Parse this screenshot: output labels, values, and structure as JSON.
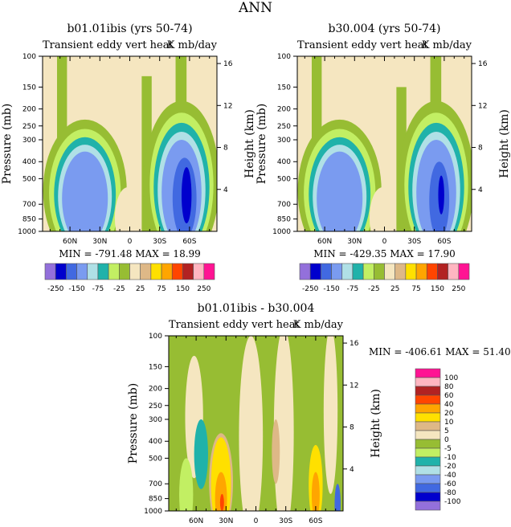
{
  "chart_data": {
    "type": "heatmap",
    "title": "ANN",
    "palette": [
      "#9370DB",
      "#0000CD",
      "#4169E1",
      "#7A9BF0",
      "#B0E0E6",
      "#20B2AA",
      "#C2EF63",
      "#97BD33",
      "#F5E6C0",
      "#DEB887",
      "#FFE000",
      "#FFA500",
      "#FF4500",
      "#B22222",
      "#FFB6C1",
      "#FF1493"
    ],
    "pressure_ticks": [
      "100",
      "150",
      "200",
      "250",
      "300",
      "400",
      "500",
      "700",
      "850",
      "1000"
    ],
    "pressure_values": [
      100,
      150,
      200,
      250,
      300,
      400,
      500,
      700,
      850,
      1000
    ],
    "height_ticks": [
      "4",
      "8",
      "12",
      "16"
    ],
    "height_values": [
      4,
      8,
      12,
      16
    ],
    "lat_ticks": [
      "60N",
      "30N",
      "0",
      "30S",
      "60S"
    ],
    "lat_values": [
      60,
      30,
      0,
      -30,
      -60
    ],
    "ylabel": "Pressure (mb)",
    "y2label": "Height (km)",
    "panels": [
      {
        "title": "b01.01ibis (yrs 50-74)",
        "subtitle_left": "Transient eddy vert heat",
        "subtitle_right": "K mb/day",
        "min_max": "MIN = -791.48   MAX =  18.99",
        "colorbar_labels": [
          "-250",
          "-150",
          "-75",
          "-25",
          "25",
          "75",
          "150",
          "250"
        ],
        "regions": [
          [
            7,
            "r",
            73,
            63,
            100,
            1000
          ],
          [
            7,
            "r",
            -12,
            -22,
            130,
            1000
          ],
          [
            7,
            "r",
            -46,
            -57,
            100,
            1000
          ],
          [
            7,
            "e",
            45,
            42,
            230,
            1500
          ],
          [
            6,
            "e",
            45,
            36,
            260,
            1400
          ],
          [
            5,
            "e",
            45,
            31,
            290,
            1300
          ],
          [
            4,
            "e",
            45,
            27,
            320,
            1250
          ],
          [
            3,
            "e",
            45,
            23,
            350,
            1200
          ],
          [
            8,
            "e",
            2,
            13,
            560,
            1250
          ],
          [
            7,
            "e",
            -52,
            38,
            180,
            1500
          ],
          [
            6,
            "e",
            -52,
            32,
            210,
            1400
          ],
          [
            5,
            "e",
            -52,
            28,
            240,
            1300
          ],
          [
            4,
            "e",
            -52,
            24,
            270,
            1250
          ],
          [
            3,
            "e",
            -52,
            20,
            300,
            1200
          ],
          [
            2,
            "e",
            -55,
            12,
            380,
            1100
          ],
          [
            1,
            "e",
            -57,
            5,
            430,
            900
          ]
        ]
      },
      {
        "title": "b30.004 (yrs 50-74)",
        "subtitle_left": "Transient eddy vert heat",
        "subtitle_right": "K mb/day",
        "min_max": "MIN = -429.35   MAX =  17.90",
        "colorbar_labels": [
          "-250",
          "-150",
          "-75",
          "-25",
          "25",
          "75",
          "150",
          "250"
        ],
        "regions": [
          [
            7,
            "r",
            73,
            63,
            100,
            1000
          ],
          [
            7,
            "r",
            -12,
            -22,
            150,
            1000
          ],
          [
            7,
            "r",
            -46,
            -57,
            100,
            1000
          ],
          [
            7,
            "e",
            45,
            42,
            230,
            1500
          ],
          [
            6,
            "e",
            45,
            36,
            260,
            1400
          ],
          [
            5,
            "e",
            45,
            31,
            290,
            1300
          ],
          [
            4,
            "e",
            45,
            27,
            320,
            1250
          ],
          [
            3,
            "e",
            45,
            23,
            350,
            1200
          ],
          [
            8,
            "e",
            2,
            13,
            560,
            1250
          ],
          [
            7,
            "e",
            -52,
            38,
            180,
            1500
          ],
          [
            6,
            "e",
            -52,
            32,
            210,
            1400
          ],
          [
            5,
            "e",
            -52,
            28,
            240,
            1300
          ],
          [
            4,
            "e",
            -52,
            24,
            270,
            1250
          ],
          [
            3,
            "e",
            -52,
            20,
            300,
            1200
          ],
          [
            2,
            "e",
            -55,
            10,
            400,
            1100
          ],
          [
            1,
            "e",
            -57,
            3,
            480,
            800
          ]
        ]
      },
      {
        "title": "b01.01ibis - b30.004",
        "subtitle_left": "Transient eddy vert heat",
        "subtitle_right": "K mb/day",
        "min_max": "MIN = -406.61   MAX =  51.40",
        "colorbar_labels": [
          "100",
          "80",
          "60",
          "40",
          "20",
          "10",
          "5",
          "0",
          "-5",
          "-10",
          "-20",
          "-40",
          "-60",
          "-80",
          "-100"
        ],
        "regions": [
          [
            7,
            "r",
            90,
            -90,
            100,
            1000
          ],
          [
            8,
            "e",
            5,
            12,
            100,
            1400
          ],
          [
            8,
            "e",
            -28,
            10,
            90,
            1400
          ],
          [
            8,
            "e",
            62,
            9,
            130,
            650
          ],
          [
            8,
            "e",
            -75,
            7,
            90,
            800
          ],
          [
            9,
            "e",
            -20,
            4,
            300,
            700
          ],
          [
            5,
            "e",
            55,
            7,
            300,
            750
          ],
          [
            6,
            "e",
            70,
            7,
            500,
            1300
          ],
          [
            9,
            "e",
            35,
            12,
            360,
            1300
          ],
          [
            10,
            "e",
            35,
            10,
            380,
            1300
          ],
          [
            11,
            "e",
            35,
            6,
            600,
            1200
          ],
          [
            12,
            "e",
            34,
            2,
            800,
            1000
          ],
          [
            10,
            "e",
            -60,
            7,
            420,
            1200
          ],
          [
            11,
            "e",
            -60,
            4,
            600,
            1100
          ],
          [
            2,
            "e",
            -82,
            3,
            700,
            1200
          ]
        ]
      }
    ]
  }
}
